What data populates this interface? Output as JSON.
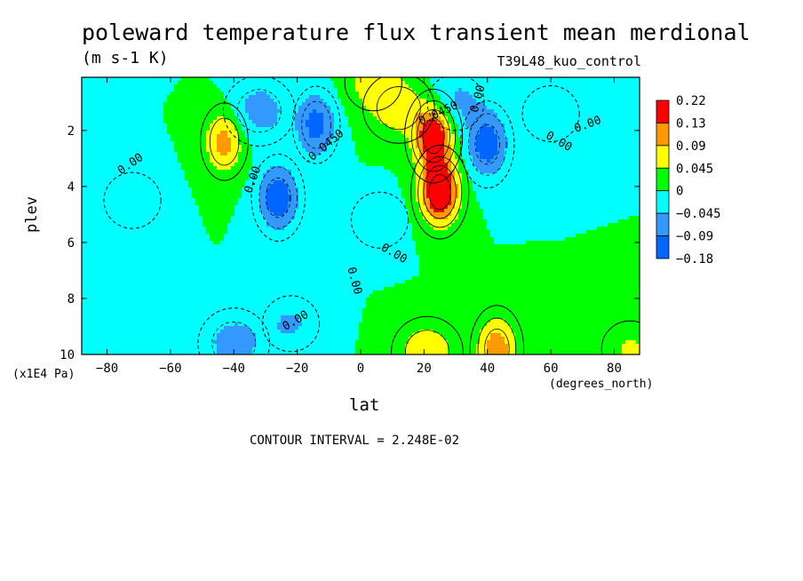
{
  "chart_data": {
    "type": "heatmap",
    "title": "poleward temperature flux transient mean merdional",
    "units": "(m s-1 K)",
    "experiment": "T39L48_kuo_control",
    "xlabel": "lat",
    "x_units": "(degrees_north)",
    "ylabel": "plev",
    "y_units": "(x1E4 Pa)",
    "x_ticks": [
      -80,
      -60,
      -40,
      -20,
      0,
      20,
      40,
      60,
      80
    ],
    "y_ticks": [
      2,
      4,
      6,
      8,
      10
    ],
    "xlim": [
      -88,
      88
    ],
    "ylim": [
      10,
      0.1
    ],
    "colorbar": {
      "levels": [
        "0.22",
        "0.13",
        "0.09",
        "0.045",
        "0",
        "-0.045",
        "-0.09",
        "-0.18"
      ],
      "colors": [
        "#ff0000",
        "#ff9900",
        "#ffff00",
        "#00ff00",
        "#00ffff",
        "#3399ff",
        "#0066ff"
      ]
    },
    "contour_labels": [
      "0.00",
      "0.0450",
      "-0.0450"
    ],
    "contour_interval_text": "CONTOUR INTERVAL = 2.248E-02",
    "features": [
      {
        "lat": 25,
        "plev": 4.2,
        "value": 0.2
      },
      {
        "lat": 23,
        "plev": 2.2,
        "value": 0.18
      },
      {
        "lat": 12,
        "plev": 1.2,
        "value": 0.07
      },
      {
        "lat": 4,
        "plev": 0.3,
        "value": 0.06
      },
      {
        "lat": -43,
        "plev": 2.4,
        "value": 0.11
      },
      {
        "lat": 43,
        "plev": 9.8,
        "value": 0.12
      },
      {
        "lat": 21,
        "plev": 9.9,
        "value": 0.08
      },
      {
        "lat": 85,
        "plev": 9.8,
        "value": 0.05
      },
      {
        "lat": -26,
        "plev": 4.4,
        "value": -0.13
      },
      {
        "lat": -14,
        "plev": 1.8,
        "value": -0.11
      },
      {
        "lat": -32,
        "plev": 1.3,
        "value": -0.07
      },
      {
        "lat": 40,
        "plev": 2.5,
        "value": -0.12
      },
      {
        "lat": 30,
        "plev": 1.0,
        "value": -0.06
      },
      {
        "lat": -40,
        "plev": 9.6,
        "value": -0.07
      },
      {
        "lat": -22,
        "plev": 8.9,
        "value": -0.05
      },
      {
        "lat": 60,
        "plev": 1.4,
        "value": -0.03
      },
      {
        "lat": -72,
        "plev": 4.5,
        "value": -0.03
      },
      {
        "lat": 6,
        "plev": 5.2,
        "value": -0.02
      }
    ]
  }
}
